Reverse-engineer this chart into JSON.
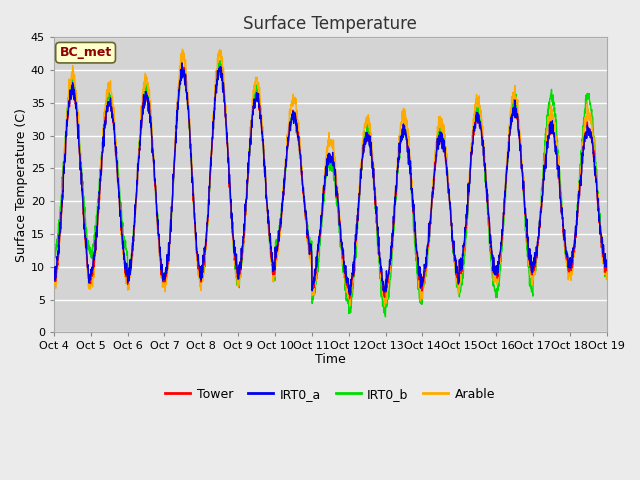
{
  "title": "Surface Temperature",
  "xlabel": "Time",
  "ylabel": "Surface Temperature (C)",
  "ylim": [
    0,
    45
  ],
  "yticks": [
    0,
    5,
    10,
    15,
    20,
    25,
    30,
    35,
    40,
    45
  ],
  "x_labels": [
    "Oct 4",
    "Oct 5",
    "Oct 6",
    "Oct 7",
    "Oct 8",
    "Oct 9",
    "Oct 10",
    "Oct 11",
    "Oct 12",
    "Oct 13",
    "Oct 14",
    "Oct 15",
    "Oct 16",
    "Oct 17",
    "Oct 18",
    "Oct 19"
  ],
  "legend_labels": [
    "Tower",
    "IRT0_a",
    "IRT0_b",
    "Arable"
  ],
  "legend_colors": [
    "#ff0000",
    "#0000ee",
    "#00dd00",
    "#ffaa00"
  ],
  "bg_color": "#ebebeb",
  "plot_bg_color": "#d4d4d4",
  "annotation_text": "BC_met",
  "annotation_bg": "#ffffcc",
  "annotation_border": "#8B0000",
  "n_days": 15,
  "pts_per_day": 144,
  "day_peaks": [
    37,
    35,
    36,
    40,
    40,
    36,
    33,
    27,
    30,
    31,
    30,
    33,
    34,
    31,
    31
  ],
  "day_mins": [
    8,
    9,
    8,
    8,
    9,
    9,
    12,
    7,
    6,
    7,
    8,
    9,
    9,
    10,
    10
  ],
  "irt0b_peaks": [
    38,
    36,
    37,
    40,
    41,
    37,
    33,
    26,
    31,
    31,
    31,
    34,
    35,
    36,
    36
  ],
  "irt0b_mins": [
    12,
    12,
    8,
    8,
    8,
    8,
    13,
    5,
    3,
    4,
    7,
    6,
    6,
    9,
    9
  ],
  "arable_extra_day": 2.5,
  "arable_extra_night": -1.0
}
